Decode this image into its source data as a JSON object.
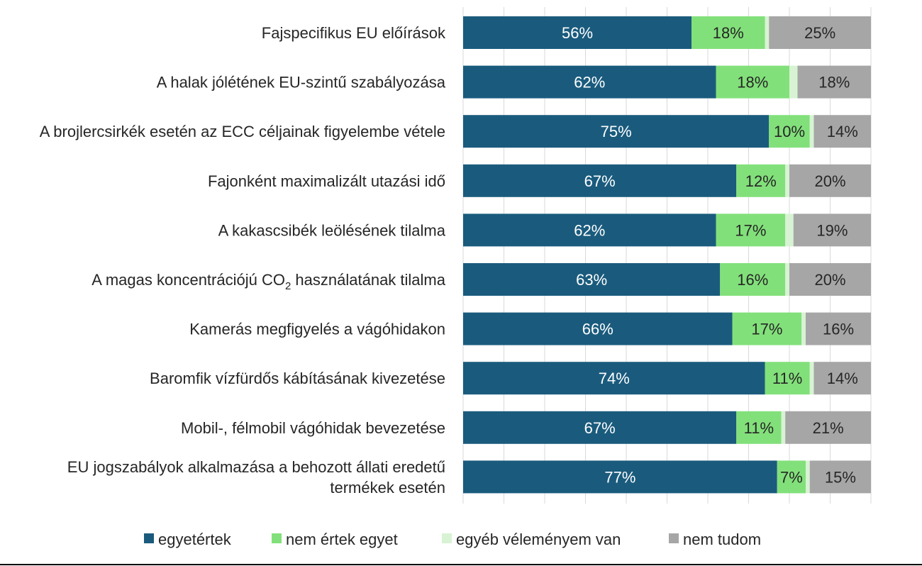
{
  "chart_data": {
    "type": "bar",
    "orientation": "horizontal",
    "stacked": true,
    "percent": true,
    "title": "",
    "xlabel": "",
    "ylabel": "",
    "xlim": [
      0,
      100
    ],
    "grid": "vertical",
    "legend_position": "bottom",
    "categories": [
      {
        "text": "Fajspecifikus EU előírások"
      },
      {
        "text": "A halak jólétének EU-szintű szabályozása"
      },
      {
        "text": "A brojlercsirkék esetén az ECC céljainak figyelembe vétele"
      },
      {
        "text": "Fajonként maximalizált utazási idő"
      },
      {
        "text": "A kakascsibék leölésének tilalma"
      },
      {
        "text": "A magas koncentrációjú CO",
        "sub": "2",
        "after": " használatának tilalma"
      },
      {
        "text": "Kamerás megfigyelés a vágóhidakon"
      },
      {
        "text": "Baromfik vízfürdős kábításának kivezetése"
      },
      {
        "text": "Mobil-, félmobil vágóhidak bevezetése"
      },
      {
        "text": "EU jogszabályok alkalmazása a behozott állati eredetű termékek esetén"
      }
    ],
    "series": [
      {
        "name": "egyetértek",
        "color": "#1a5b7d",
        "label_color": "#ffffff",
        "values": [
          56,
          62,
          75,
          67,
          62,
          63,
          66,
          74,
          67,
          77
        ]
      },
      {
        "name": "nem értek egyet",
        "color": "#82e07a",
        "label_color": "#262626",
        "values": [
          18,
          18,
          10,
          12,
          17,
          16,
          17,
          11,
          11,
          7
        ]
      },
      {
        "name": "egyéb véleményem van",
        "color": "#d7f3d3",
        "label_color": "#262626",
        "values": [
          1,
          2,
          1,
          1,
          2,
          1,
          1,
          1,
          1,
          1
        ]
      },
      {
        "name": "nem tudom",
        "color": "#a6a6a6",
        "label_color": "#262626",
        "values": [
          25,
          18,
          14,
          20,
          19,
          20,
          16,
          14,
          21,
          15
        ]
      }
    ],
    "data_labels": [
      [
        "56%",
        "62%",
        "75%",
        "67%",
        "62%",
        "63%",
        "66%",
        "74%",
        "67%",
        "77%"
      ],
      [
        "18%",
        "18%",
        "10%",
        "12%",
        "17%",
        "16%",
        "17%",
        "11%",
        "11%",
        "7%"
      ],
      [
        "",
        "",
        "",
        "",
        "",
        "",
        "",
        "",
        "",
        ""
      ],
      [
        "25%",
        "18%",
        "14%",
        "20%",
        "19%",
        "20%",
        "16%",
        "14%",
        "21%",
        "15%"
      ]
    ]
  }
}
